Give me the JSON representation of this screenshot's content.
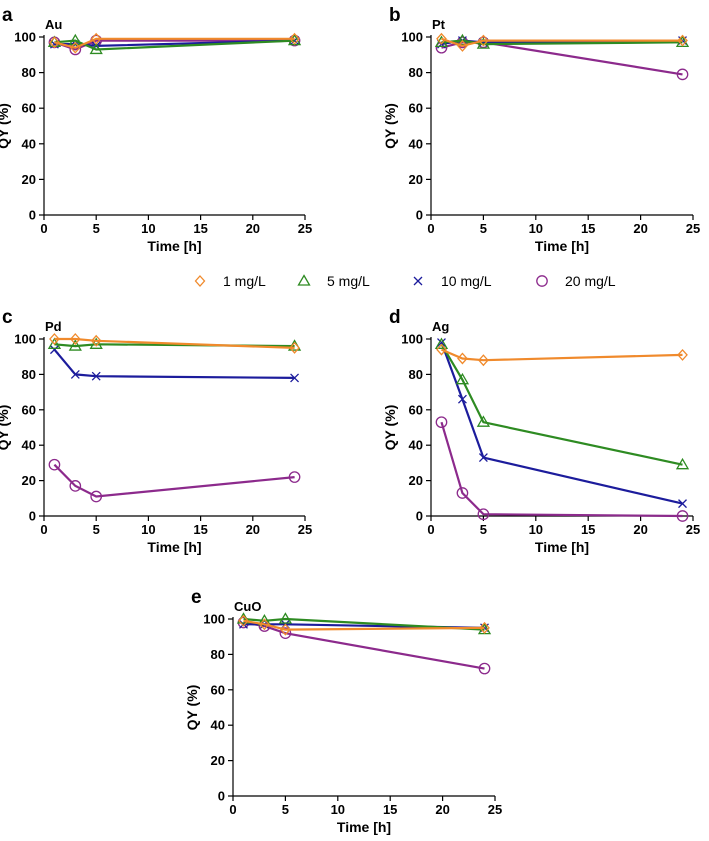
{
  "figure": {
    "legend": [
      {
        "label": "1 mg/L",
        "marker": "diamond",
        "color": "#F08A2C"
      },
      {
        "label": "5 mg/L",
        "marker": "triangle",
        "color": "#2E8B22"
      },
      {
        "label": "10 mg/L",
        "marker": "x",
        "color": "#1C1C9C"
      },
      {
        "label": "20 mg/L",
        "marker": "circle",
        "color": "#8C2A8C"
      }
    ]
  },
  "chart_data": [
    {
      "type": "line",
      "panel_letter": "a",
      "title": "Au",
      "xlabel": "Time [h]",
      "ylabel": "QY (%)",
      "xlim": [
        0,
        25
      ],
      "ylim": [
        0,
        100
      ],
      "xticks": [
        0,
        5,
        10,
        15,
        20,
        25
      ],
      "yticks": [
        0,
        20,
        40,
        60,
        80,
        100
      ],
      "x": [
        1,
        3,
        5,
        24
      ],
      "series": [
        {
          "name": "1 mg/L",
          "values": [
            97,
            94,
            99,
            99
          ]
        },
        {
          "name": "5 mg/L",
          "values": [
            97,
            98,
            93,
            98
          ]
        },
        {
          "name": "10 mg/L",
          "values": [
            96,
            96,
            95,
            98
          ]
        },
        {
          "name": "20 mg/L",
          "values": [
            97,
            93,
            98,
            98
          ]
        }
      ]
    },
    {
      "type": "line",
      "panel_letter": "b",
      "title": "Pt",
      "xlabel": "Time [h]",
      "ylabel": "QY (%)",
      "xlim": [
        0,
        25
      ],
      "ylim": [
        0,
        100
      ],
      "xticks": [
        0,
        5,
        10,
        15,
        20,
        25
      ],
      "yticks": [
        0,
        20,
        40,
        60,
        80,
        100
      ],
      "x": [
        1,
        3,
        5,
        24
      ],
      "series": [
        {
          "name": "1 mg/L",
          "values": [
            99,
            95,
            98,
            98
          ]
        },
        {
          "name": "5 mg/L",
          "values": [
            97,
            98,
            96,
            97
          ]
        },
        {
          "name": "10 mg/L",
          "values": [
            96,
            98,
            97,
            98
          ]
        },
        {
          "name": "20 mg/L",
          "values": [
            94,
            97,
            97,
            79
          ]
        }
      ]
    },
    {
      "type": "line",
      "panel_letter": "c",
      "title": "Pd",
      "xlabel": "Time [h]",
      "ylabel": "QY (%)",
      "xlim": [
        0,
        25
      ],
      "ylim": [
        0,
        100
      ],
      "xticks": [
        0,
        5,
        10,
        15,
        20,
        25
      ],
      "yticks": [
        0,
        20,
        40,
        60,
        80,
        100
      ],
      "x": [
        1,
        3,
        5,
        24
      ],
      "series": [
        {
          "name": "1 mg/L",
          "values": [
            100,
            100,
            99,
            95
          ]
        },
        {
          "name": "5 mg/L",
          "values": [
            97,
            96,
            97,
            96
          ]
        },
        {
          "name": "10 mg/L",
          "values": [
            94,
            80,
            79,
            78
          ]
        },
        {
          "name": "20 mg/L",
          "values": [
            29,
            17,
            11,
            22
          ]
        }
      ]
    },
    {
      "type": "line",
      "panel_letter": "d",
      "title": "Ag",
      "xlabel": "Time [h]",
      "ylabel": "QY (%)",
      "xlim": [
        0,
        25
      ],
      "ylim": [
        0,
        100
      ],
      "xticks": [
        0,
        5,
        10,
        15,
        20,
        25
      ],
      "yticks": [
        0,
        20,
        40,
        60,
        80,
        100
      ],
      "x": [
        1,
        3,
        5,
        24
      ],
      "series": [
        {
          "name": "1 mg/L",
          "values": [
            94,
            89,
            88,
            91
          ]
        },
        {
          "name": "5 mg/L",
          "values": [
            97,
            77,
            53,
            29
          ]
        },
        {
          "name": "10 mg/L",
          "values": [
            98,
            66,
            33,
            7
          ]
        },
        {
          "name": "20 mg/L",
          "values": [
            53,
            13,
            1,
            0
          ]
        }
      ]
    },
    {
      "type": "line",
      "panel_letter": "e",
      "title": "CuO",
      "xlabel": "Time [h]",
      "ylabel": "QY (%)",
      "xlim": [
        0,
        25
      ],
      "ylim": [
        0,
        100
      ],
      "xticks": [
        0,
        5,
        10,
        15,
        20,
        25
      ],
      "yticks": [
        0,
        20,
        40,
        60,
        80,
        100
      ],
      "x": [
        1,
        3,
        5,
        24
      ],
      "series": [
        {
          "name": "1 mg/L",
          "values": [
            99,
            97,
            94,
            95
          ]
        },
        {
          "name": "5 mg/L",
          "values": [
            100,
            99,
            100,
            94
          ]
        },
        {
          "name": "10 mg/L",
          "values": [
            97,
            97,
            97,
            95
          ]
        },
        {
          "name": "20 mg/L",
          "values": [
            98,
            96,
            92,
            72
          ]
        }
      ]
    }
  ]
}
